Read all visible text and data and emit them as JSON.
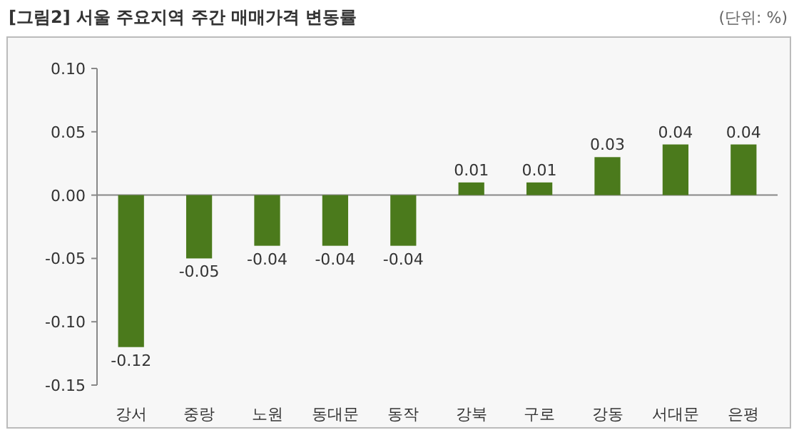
{
  "chart_data": {
    "type": "bar",
    "title": "[그림2] 서울 주요지역 주간 매매가격 변동률",
    "annotations": [
      "(단위: %)"
    ],
    "categories": [
      "강서",
      "중랑",
      "노원",
      "동대문",
      "동작",
      "강북",
      "구로",
      "강동",
      "서대문",
      "은평"
    ],
    "values": [
      -0.12,
      -0.05,
      -0.04,
      -0.04,
      -0.04,
      0.01,
      0.01,
      0.03,
      0.04,
      0.04
    ],
    "value_labels": [
      "-0.12",
      "-0.05",
      "-0.04",
      "-0.04",
      "-0.04",
      "0.01",
      "0.01",
      "0.03",
      "0.04",
      "0.04"
    ],
    "color": "#4b7a1c",
    "ylim": [
      -0.15,
      0.1
    ],
    "yticks": [
      {
        "value": -0.15,
        "label": "-0.15"
      },
      {
        "value": -0.1,
        "label": "-0.10"
      },
      {
        "value": -0.05,
        "label": "-0.05"
      },
      {
        "value": 0,
        "label": "0.00"
      },
      {
        "value": 0.05,
        "label": "0.05"
      },
      {
        "value": 0.1,
        "label": "0.10"
      }
    ]
  }
}
